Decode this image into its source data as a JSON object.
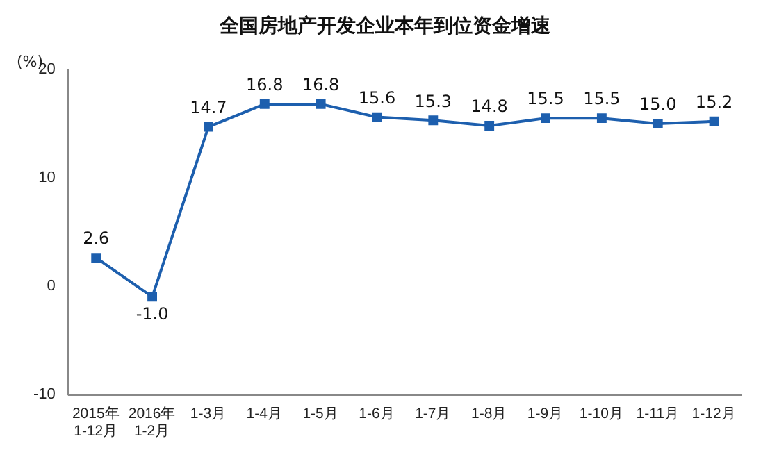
{
  "chart_data": {
    "type": "line",
    "title": "全国房地产开发企业本年到位资金增速",
    "ylabel": "(%)",
    "categories": [
      "2015年\n1-12月",
      "2016年\n1-2月",
      "1-3月",
      "1-4月",
      "1-5月",
      "1-6月",
      "1-7月",
      "1-8月",
      "1-9月",
      "1-10月",
      "1-11月",
      "1-12月"
    ],
    "series": [
      {
        "color": "#1d5fae",
        "values": [
          2.6,
          -1.0,
          14.7,
          16.8,
          16.8,
          15.6,
          15.3,
          14.8,
          15.5,
          15.5,
          15.0,
          15.2
        ],
        "value_labels": [
          "2.6",
          "-1.0",
          "14.7",
          "16.8",
          "16.8",
          "15.6",
          "15.3",
          "14.8",
          "15.5",
          "15.5",
          "15.0",
          "15.2"
        ]
      }
    ],
    "ylim": [
      -10,
      20
    ],
    "yticks": [
      -10,
      0,
      10,
      20
    ],
    "grid": false,
    "legend": false,
    "marker": "square",
    "line_style": "solid"
  }
}
